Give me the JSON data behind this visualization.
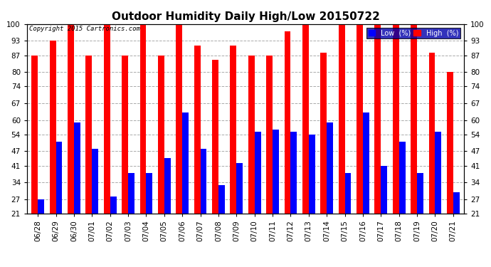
{
  "title": "Outdoor Humidity Daily High/Low 20150722",
  "copyright": "Copyright 2015 Cartronics.com",
  "dates": [
    "06/28",
    "06/29",
    "06/30",
    "07/01",
    "07/02",
    "07/03",
    "07/04",
    "07/05",
    "07/06",
    "07/07",
    "07/08",
    "07/09",
    "07/10",
    "07/11",
    "07/12",
    "07/13",
    "07/14",
    "07/15",
    "07/16",
    "07/17",
    "07/18",
    "07/19",
    "07/20",
    "07/21"
  ],
  "high": [
    87,
    93,
    100,
    87,
    100,
    87,
    100,
    87,
    100,
    91,
    85,
    91,
    87,
    87,
    97,
    100,
    88,
    100,
    100,
    100,
    100,
    100,
    88,
    80
  ],
  "low": [
    27,
    51,
    59,
    48,
    28,
    38,
    38,
    44,
    63,
    48,
    33,
    42,
    55,
    56,
    55,
    54,
    59,
    38,
    63,
    41,
    51,
    38,
    55,
    30
  ],
  "high_color": "#ff0000",
  "low_color": "#0000ff",
  "bg_color": "#ffffff",
  "ylim_min": 21,
  "ylim_max": 100,
  "yticks": [
    21,
    27,
    34,
    41,
    47,
    54,
    60,
    67,
    74,
    80,
    87,
    93,
    100
  ],
  "grid_color": "#aaaaaa",
  "bar_width": 0.35,
  "title_fontsize": 11,
  "tick_fontsize": 7.5,
  "legend_low_label": "Low  (%)",
  "legend_high_label": "High  (%)"
}
